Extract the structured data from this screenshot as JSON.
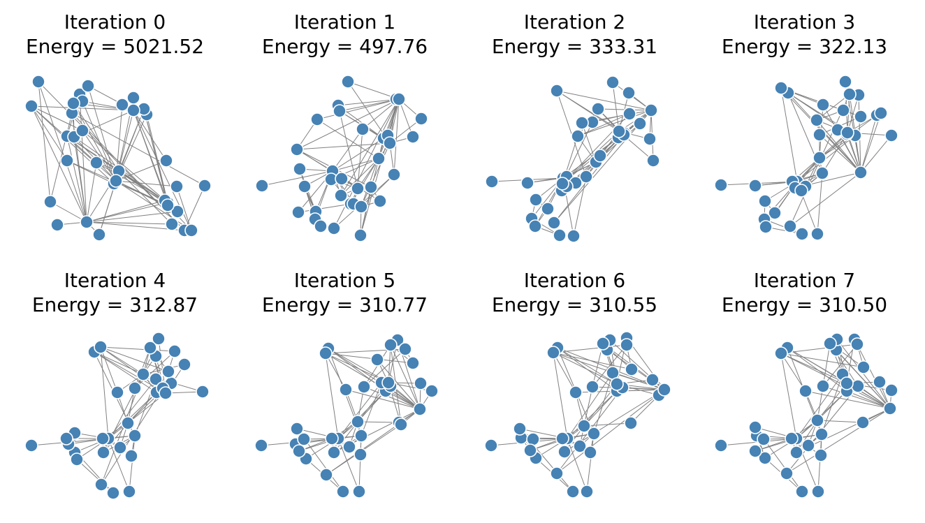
{
  "colors": {
    "node_fill": "#4682b4",
    "node_stroke": "#ffffff",
    "edge": "#808080"
  },
  "panels": [
    {
      "iteration_label": "Iteration 0",
      "energy_label": "Energy = 5021.52"
    },
    {
      "iteration_label": "Iteration 1",
      "energy_label": "Energy = 497.76"
    },
    {
      "iteration_label": "Iteration 2",
      "energy_label": "Energy = 333.31"
    },
    {
      "iteration_label": "Iteration 3",
      "energy_label": "Energy = 322.13"
    },
    {
      "iteration_label": "Iteration 4",
      "energy_label": "Energy = 312.87"
    },
    {
      "iteration_label": "Iteration 5",
      "energy_label": "Energy = 310.77"
    },
    {
      "iteration_label": "Iteration 6",
      "energy_label": "Energy = 310.55"
    },
    {
      "iteration_label": "Iteration 7",
      "energy_label": "Energy = 310.50"
    }
  ]
}
